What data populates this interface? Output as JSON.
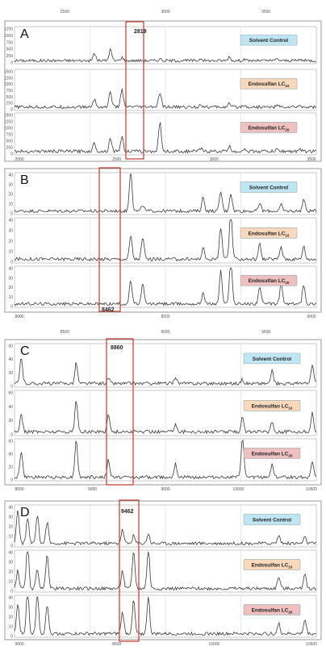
{
  "figure": {
    "panels": [
      {
        "letter": "A",
        "highlight_peak": "2819",
        "top_ticks": [
          "2500",
          "3000",
          "3500"
        ],
        "bottom_ticks": [
          "2000",
          "2500",
          "3000",
          "3500"
        ],
        "y_ticks": [
          [
            "1250",
            "1000",
            "750",
            "500",
            "250",
            "0"
          ],
          [
            "1500",
            "1250",
            "1000",
            "750",
            "500",
            "250",
            "0"
          ],
          [
            "1500",
            "1250",
            "1000",
            "750",
            "500",
            "250",
            "0"
          ]
        ]
      },
      {
        "letter": "B",
        "highlight_peak": "8462",
        "top_ticks": [],
        "bottom_ticks": [
          "8000",
          "8500",
          "9000"
        ],
        "y_ticks": [
          [
            "40",
            "30",
            "20",
            "10",
            "0"
          ],
          [
            "40",
            "30",
            "20",
            "10",
            "0"
          ],
          [
            "40",
            "30",
            "20",
            "10",
            "0"
          ]
        ]
      },
      {
        "letter": "C",
        "highlight_peak": "8860",
        "top_ticks": [
          "8500",
          "9000",
          "9500"
        ],
        "bottom_ticks": [
          "8500",
          "9000",
          "9500",
          "10000",
          "10500"
        ],
        "y_ticks": [
          [
            "60",
            "40",
            "20",
            "0"
          ],
          [
            "60",
            "40",
            "20",
            "0"
          ],
          [
            "60",
            "40",
            "20",
            "0"
          ]
        ]
      },
      {
        "letter": "D",
        "highlight_peak": "9462",
        "top_ticks": [],
        "bottom_ticks": [
          "9000",
          "9500",
          "10000",
          "10500"
        ],
        "y_ticks": [
          [
            "40",
            "30",
            "20",
            "10",
            "0"
          ],
          [
            "40",
            "30",
            "20",
            "10",
            "0"
          ],
          [
            "40",
            "30",
            "20",
            "10",
            "0"
          ]
        ]
      }
    ],
    "legend": [
      {
        "main": "Solvent Control",
        "sub": "",
        "color": "#bfe6f2"
      },
      {
        "main": "Endosulfan LC",
        "sub": "10",
        "color": "#f9d8bc"
      },
      {
        "main": "Endosulfan LC",
        "sub": "20",
        "color": "#eec0c0"
      }
    ],
    "colors": {
      "highlight": "#c0392b",
      "trace": "#3a3a3a"
    }
  },
  "chart_data": [
    {
      "type": "line",
      "panel": "A",
      "xlim": [
        2000,
        3700
      ],
      "x_peaks": [
        2450,
        2540,
        2605,
        2819,
        3050,
        3210,
        3290,
        3480,
        3610
      ],
      "series": [
        {
          "name": "Solvent Control",
          "ylim": [
            0,
            1250
          ],
          "peak_values": [
            260,
            400,
            120,
            60,
            80,
            140,
            50,
            60,
            40
          ]
        },
        {
          "name": "Endosulfan LC10",
          "ylim": [
            0,
            1500
          ],
          "peak_values": [
            300,
            600,
            700,
            560,
            120,
            120,
            80,
            60,
            50
          ]
        },
        {
          "name": "Endosulfan LC20",
          "ylim": [
            0,
            1500
          ],
          "peak_values": [
            320,
            520,
            560,
            1120,
            100,
            180,
            80,
            70,
            60
          ]
        }
      ]
    },
    {
      "type": "line",
      "panel": "B",
      "xlim": [
        8000,
        9200
      ],
      "x_peaks": [
        8462,
        8510,
        8750,
        8820,
        8860,
        8975,
        9060,
        9150
      ],
      "series": [
        {
          "name": "Solvent Control",
          "ylim": [
            0,
            40
          ],
          "peak_values": [
            42,
            6,
            14,
            20,
            18,
            8,
            6,
            12
          ]
        },
        {
          "name": "Endosulfan LC10",
          "ylim": [
            0,
            40
          ],
          "peak_values": [
            22,
            20,
            10,
            30,
            46,
            14,
            12,
            12
          ]
        },
        {
          "name": "Endosulfan LC20",
          "ylim": [
            0,
            40
          ],
          "peak_values": [
            24,
            20,
            12,
            34,
            48,
            18,
            22,
            20
          ]
        }
      ]
    },
    {
      "type": "line",
      "panel": "C",
      "xlim": [
        8400,
        10650
      ],
      "x_peaks": [
        8450,
        8860,
        9100,
        9600,
        10100,
        10320,
        10620
      ],
      "series": [
        {
          "name": "Solvent Control",
          "ylim": [
            0,
            60
          ],
          "peak_values": [
            38,
            30,
            8,
            10,
            6,
            18,
            28
          ]
        },
        {
          "name": "Endosulfan LC10",
          "ylim": [
            0,
            60
          ],
          "peak_values": [
            26,
            44,
            24,
            12,
            22,
            14,
            26
          ]
        },
        {
          "name": "Endosulfan LC20",
          "ylim": [
            0,
            60
          ],
          "peak_values": [
            40,
            58,
            26,
            22,
            62,
            20,
            24
          ]
        }
      ]
    },
    {
      "type": "line",
      "panel": "D",
      "xlim": [
        8800,
        10650
      ],
      "x_peaks": [
        8820,
        8880,
        8940,
        9000,
        9462,
        9530,
        9620,
        10420,
        10580
      ],
      "series": [
        {
          "name": "Solvent Control",
          "ylim": [
            0,
            40
          ],
          "peak_values": [
            34,
            26,
            30,
            22,
            14,
            8,
            10,
            8,
            6
          ]
        },
        {
          "name": "Endosulfan LC10",
          "ylim": [
            0,
            40
          ],
          "peak_values": [
            18,
            44,
            20,
            36,
            18,
            38,
            40,
            12,
            16
          ]
        },
        {
          "name": "Endosulfan LC20",
          "ylim": [
            0,
            40
          ],
          "peak_values": [
            30,
            44,
            42,
            30,
            22,
            34,
            38,
            10,
            14
          ]
        }
      ]
    }
  ]
}
